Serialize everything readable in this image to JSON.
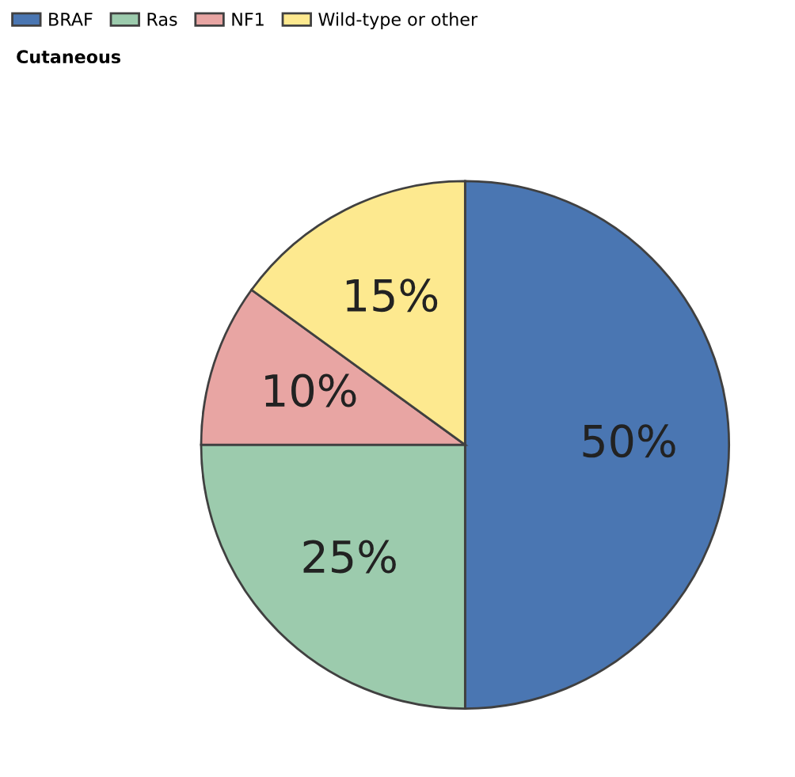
{
  "chart_data": {
    "type": "pie",
    "title": "Cutaneous",
    "categories": [
      "BRAF",
      "Ras",
      "NF1",
      "Wild-type or other"
    ],
    "values": [
      50,
      25,
      10,
      15
    ],
    "colors": [
      "#4a76b2",
      "#9ccbad",
      "#e8a5a3",
      "#fde98f"
    ],
    "value_labels": [
      "50%",
      "25%",
      "10%",
      "15%"
    ],
    "legend": "top left"
  }
}
